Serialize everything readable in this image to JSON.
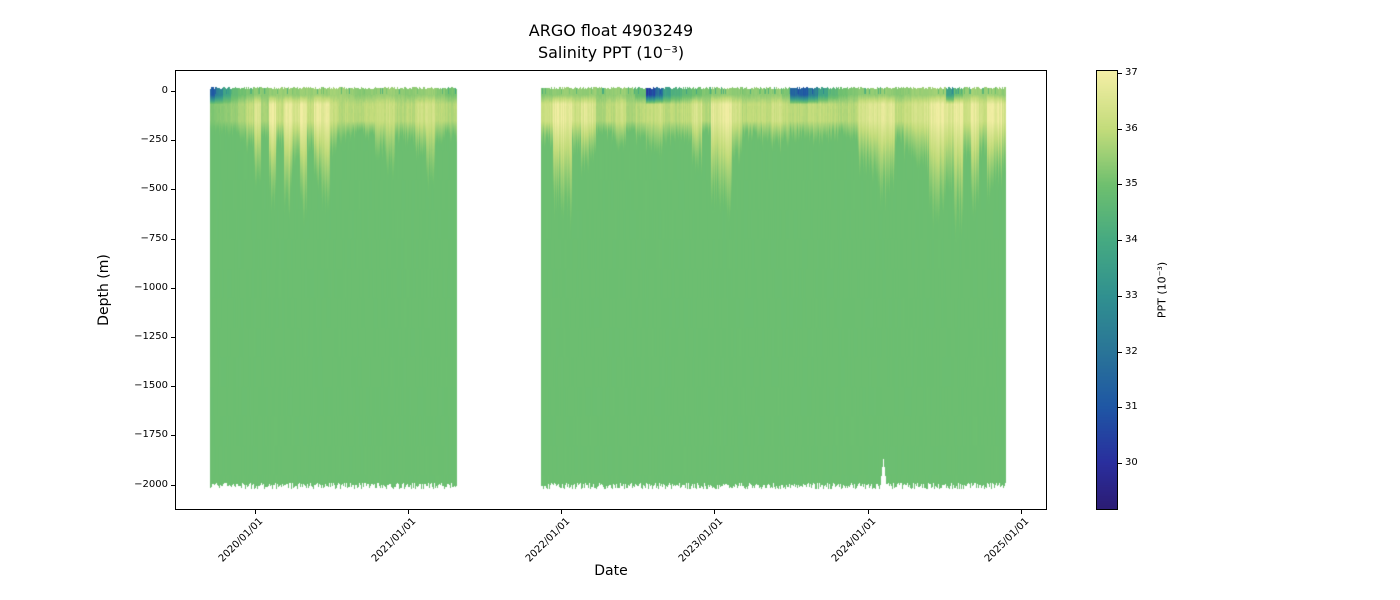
{
  "title": "ARGO float 4903249",
  "subtitle": "Salinity PPT (10⁻³)",
  "axes": {
    "xlabel": "Date",
    "ylabel": "Depth (m)",
    "x_ticks": [
      {
        "label": "2020/01/01",
        "t": 2020.0
      },
      {
        "label": "2021/01/01",
        "t": 2021.0
      },
      {
        "label": "2022/01/01",
        "t": 2022.0
      },
      {
        "label": "2023/01/01",
        "t": 2023.0
      },
      {
        "label": "2024/01/01",
        "t": 2024.0
      },
      {
        "label": "2025/01/01",
        "t": 2025.0
      }
    ],
    "y_ticks": [
      {
        "label": "0",
        "depth_m": 0
      },
      {
        "label": "−250",
        "depth_m": 250
      },
      {
        "label": "−500",
        "depth_m": 500
      },
      {
        "label": "−750",
        "depth_m": 750
      },
      {
        "label": "−1000",
        "depth_m": 1000
      },
      {
        "label": "−1250",
        "depth_m": 1250
      },
      {
        "label": "−1500",
        "depth_m": 1500
      },
      {
        "label": "−1750",
        "depth_m": 1750
      },
      {
        "label": "−2000",
        "depth_m": 2000
      }
    ],
    "x_domain_years": [
      2019.48,
      2025.17
    ]
  },
  "colorbar": {
    "label": "PPT (10⁻³)",
    "ticks": [
      30,
      31,
      32,
      33,
      34,
      35,
      36,
      37
    ],
    "vmin": 29.16,
    "vmax": 37.05
  },
  "chart_data": {
    "type": "heatmap",
    "title": "ARGO float 4903249",
    "subtitle": "Salinity PPT (10⁻³)",
    "xlabel": "Date",
    "ylabel": "Depth (m)",
    "value_label": "Salinity PPT (10⁻³)",
    "x_unit": "decimal_year",
    "depth_range_m": [
      0,
      -2000
    ],
    "value_range_ppt": [
      29.16,
      37.05
    ],
    "deep_salinity_ppt": 34.92,
    "colormap_stops": [
      [
        29.2,
        "#2c1d76"
      ],
      [
        30.0,
        "#2a2f9e"
      ],
      [
        31.0,
        "#1f57a5"
      ],
      [
        32.0,
        "#2a7598"
      ],
      [
        33.0,
        "#319190"
      ],
      [
        34.0,
        "#46aa82"
      ],
      [
        35.0,
        "#6fc06f"
      ],
      [
        36.0,
        "#c3dc7b"
      ],
      [
        37.0,
        "#f2eea4"
      ]
    ],
    "blocks": [
      {
        "start": 2019.708,
        "end": 2021.314
      },
      {
        "start": 2021.862,
        "end": 2024.897
      }
    ],
    "bottom_depth_m": 2000,
    "bottom_notch": {
      "t": 2024.1,
      "depth_m": 1865
    },
    "columns_format": [
      "t_decimal_year",
      "surface_salinity_ppt",
      "upper_max_salinity_ppt",
      "plume_depth_m"
    ],
    "columns": [
      [
        2019.708,
        31.3,
        35.2,
        210
      ],
      [
        2019.761,
        32.6,
        35.3,
        210
      ],
      [
        2019.813,
        33.9,
        35.4,
        220
      ],
      [
        2019.865,
        34.7,
        35.5,
        230
      ],
      [
        2019.917,
        35.0,
        35.7,
        250
      ],
      [
        2019.969,
        35.2,
        36.0,
        300
      ],
      [
        2020.009,
        35.4,
        36.6,
        450
      ],
      [
        2020.061,
        35.3,
        35.7,
        250
      ],
      [
        2020.113,
        35.4,
        36.8,
        560
      ],
      [
        2020.165,
        35.5,
        36.1,
        300
      ],
      [
        2020.217,
        35.5,
        36.8,
        600
      ],
      [
        2020.269,
        35.4,
        36.4,
        400
      ],
      [
        2020.315,
        35.5,
        36.9,
        660
      ],
      [
        2020.361,
        35.5,
        36.1,
        300
      ],
      [
        2020.413,
        35.6,
        36.7,
        500
      ],
      [
        2020.459,
        35.5,
        36.8,
        620
      ],
      [
        2020.511,
        35.6,
        36.1,
        320
      ],
      [
        2020.563,
        35.6,
        35.9,
        260
      ],
      [
        2020.622,
        35.5,
        35.9,
        230
      ],
      [
        2020.687,
        35.3,
        35.8,
        210
      ],
      [
        2020.752,
        35.4,
        35.9,
        230
      ],
      [
        2020.818,
        35.5,
        36.1,
        320
      ],
      [
        2020.883,
        35.5,
        36.2,
        420
      ],
      [
        2020.948,
        35.4,
        35.8,
        250
      ],
      [
        2021.013,
        35.3,
        35.9,
        260
      ],
      [
        2021.079,
        35.4,
        36.2,
        330
      ],
      [
        2021.144,
        35.5,
        36.3,
        480
      ],
      [
        2021.209,
        35.3,
        35.9,
        280
      ],
      [
        2021.274,
        35.1,
        35.8,
        240
      ],
      [
        2021.862,
        35.2,
        36.1,
        260
      ],
      [
        2021.914,
        35.3,
        36.2,
        280
      ],
      [
        2021.979,
        35.4,
        36.8,
        600
      ],
      [
        2022.031,
        35.5,
        36.8,
        650
      ],
      [
        2022.097,
        35.4,
        36.2,
        300
      ],
      [
        2022.149,
        35.4,
        36.6,
        420
      ],
      [
        2022.201,
        35.5,
        36.5,
        380
      ],
      [
        2022.253,
        35.3,
        35.7,
        220
      ],
      [
        2022.319,
        35.4,
        35.9,
        240
      ],
      [
        2022.384,
        35.5,
        36.2,
        280
      ],
      [
        2022.449,
        35.3,
        35.7,
        210
      ],
      [
        2022.514,
        34.8,
        35.9,
        260
      ],
      [
        2022.58,
        30.6,
        36.0,
        300
      ],
      [
        2022.632,
        31.8,
        36.2,
        320
      ],
      [
        2022.684,
        33.6,
        35.9,
        260
      ],
      [
        2022.749,
        34.3,
        35.9,
        240
      ],
      [
        2022.815,
        34.7,
        36.0,
        260
      ],
      [
        2022.88,
        35.0,
        36.4,
        380
      ],
      [
        2022.945,
        35.2,
        35.8,
        220
      ],
      [
        2023.01,
        35.4,
        36.7,
        560
      ],
      [
        2023.076,
        35.5,
        36.8,
        620
      ],
      [
        2023.141,
        35.4,
        36.3,
        340
      ],
      [
        2023.206,
        35.3,
        35.9,
        240
      ],
      [
        2023.271,
        35.4,
        36.0,
        240
      ],
      [
        2023.337,
        35.4,
        36.0,
        260
      ],
      [
        2023.402,
        35.5,
        36.2,
        300
      ],
      [
        2023.467,
        35.2,
        36.0,
        260
      ],
      [
        2023.519,
        31.6,
        35.9,
        240
      ],
      [
        2023.578,
        31.2,
        35.9,
        240
      ],
      [
        2023.637,
        32.4,
        36.0,
        260
      ],
      [
        2023.702,
        33.8,
        36.0,
        260
      ],
      [
        2023.767,
        34.6,
        35.9,
        240
      ],
      [
        2023.833,
        35.0,
        35.8,
        220
      ],
      [
        2023.898,
        35.2,
        35.9,
        240
      ],
      [
        2023.963,
        35.4,
        36.4,
        400
      ],
      [
        2024.028,
        35.4,
        36.5,
        430
      ],
      [
        2024.094,
        35.5,
        36.7,
        560
      ],
      [
        2024.146,
        35.4,
        36.6,
        500
      ],
      [
        2024.198,
        35.3,
        36.0,
        260
      ],
      [
        2024.263,
        35.4,
        36.2,
        330
      ],
      [
        2024.315,
        35.5,
        36.3,
        360
      ],
      [
        2024.368,
        35.5,
        36.4,
        400
      ],
      [
        2024.42,
        35.6,
        36.8,
        640
      ],
      [
        2024.472,
        35.6,
        36.8,
        600
      ],
      [
        2024.537,
        33.6,
        36.5,
        480
      ],
      [
        2024.589,
        35.0,
        36.8,
        680
      ],
      [
        2024.642,
        35.5,
        36.3,
        380
      ],
      [
        2024.694,
        35.6,
        36.8,
        620
      ],
      [
        2024.746,
        35.5,
        36.2,
        340
      ],
      [
        2024.798,
        35.6,
        36.9,
        500
      ],
      [
        2024.85,
        35.5,
        36.8,
        460
      ],
      [
        2024.896,
        35.4,
        36.4,
        400
      ]
    ]
  }
}
